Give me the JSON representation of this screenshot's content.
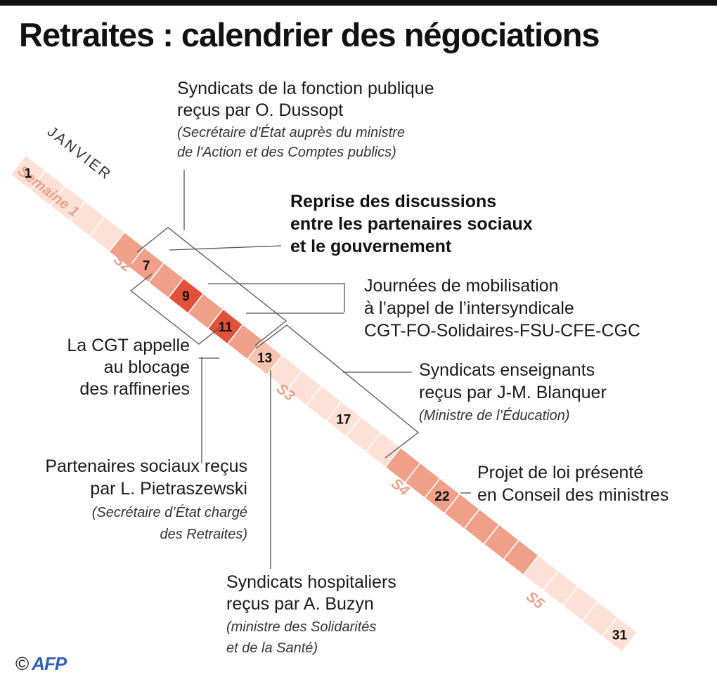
{
  "title": "Retraites : calendrier des négociations",
  "month": "JANVIER",
  "weeks": [
    "Semaine 1",
    "S2",
    "S3",
    "S4",
    "S5"
  ],
  "days": [
    {
      "day": 1,
      "shade": 0,
      "label": "1"
    },
    {
      "day": 2,
      "shade": 0
    },
    {
      "day": 3,
      "shade": 0
    },
    {
      "day": 4,
      "shade": 0
    },
    {
      "day": 5,
      "shade": 0
    },
    {
      "day": 6,
      "shade": 2
    },
    {
      "day": 7,
      "shade": 2,
      "label": "7"
    },
    {
      "day": 8,
      "shade": 2
    },
    {
      "day": 9,
      "shade": 3,
      "label": "9"
    },
    {
      "day": 10,
      "shade": 2
    },
    {
      "day": 11,
      "shade": 3,
      "label": "11"
    },
    {
      "day": 12,
      "shade": 2
    },
    {
      "day": 13,
      "shade": 1,
      "label": "13"
    },
    {
      "day": 14,
      "shade": 0
    },
    {
      "day": 15,
      "shade": 0
    },
    {
      "day": 16,
      "shade": 0
    },
    {
      "day": 17,
      "shade": 0,
      "label": "17"
    },
    {
      "day": 18,
      "shade": 0
    },
    {
      "day": 19,
      "shade": 0
    },
    {
      "day": 20,
      "shade": 2
    },
    {
      "day": 21,
      "shade": 2
    },
    {
      "day": 22,
      "shade": 2,
      "label": "22"
    },
    {
      "day": 23,
      "shade": 2
    },
    {
      "day": 24,
      "shade": 2
    },
    {
      "day": 25,
      "shade": 2
    },
    {
      "day": 26,
      "shade": 2
    },
    {
      "day": 27,
      "shade": 0
    },
    {
      "day": 28,
      "shade": 0
    },
    {
      "day": 29,
      "shade": 0
    },
    {
      "day": 30,
      "shade": 0
    },
    {
      "day": 31,
      "shade": 0,
      "label": "31"
    }
  ],
  "shade_colors": [
    "#fde1d6",
    "#f7c3ae",
    "#f0a088",
    "#e2513a"
  ],
  "annotations": {
    "dussopt": {
      "lines": [
        "Syndicats de la fonction publique",
        "reçus par O. Dussopt"
      ],
      "note": [
        "(Secrétaire d'État auprès du ministre",
        "de l'Action et des Comptes publics)"
      ]
    },
    "reprise": {
      "lines": [
        "Reprise des discussions",
        "entre les partenaires sociaux",
        "et le gouvernement"
      ]
    },
    "mobilisation": {
      "lines": [
        "Journées de mobilisation",
        "à l’appel de l’intersyndicale",
        "CGT-FO-Solidaires-FSU-CFE-CGC"
      ]
    },
    "cgt": {
      "lines": [
        "La CGT appelle",
        "au blocage",
        "des raffineries"
      ]
    },
    "blanquer": {
      "lines": [
        "Syndicats enseignants",
        "reçus par J-M. Blanquer"
      ],
      "note": [
        "(Ministre de l’Éducation)"
      ]
    },
    "pietraszewski": {
      "lines": [
        "Partenaires sociaux reçus",
        "par L. Pietraszewski"
      ],
      "note": [
        "(Secrétaire d’État chargé",
        "des Retraites)"
      ]
    },
    "projet": {
      "lines": [
        "Projet de loi présenté",
        "en Conseil des ministres"
      ]
    },
    "buzyn": {
      "lines": [
        "Syndicats hospitaliers",
        "reçus par A. Buzyn"
      ],
      "note": [
        "(ministre des Solidarités",
        "et de la Santé)"
      ]
    }
  },
  "footer": {
    "copyright": "©",
    "agency": "AFP"
  }
}
